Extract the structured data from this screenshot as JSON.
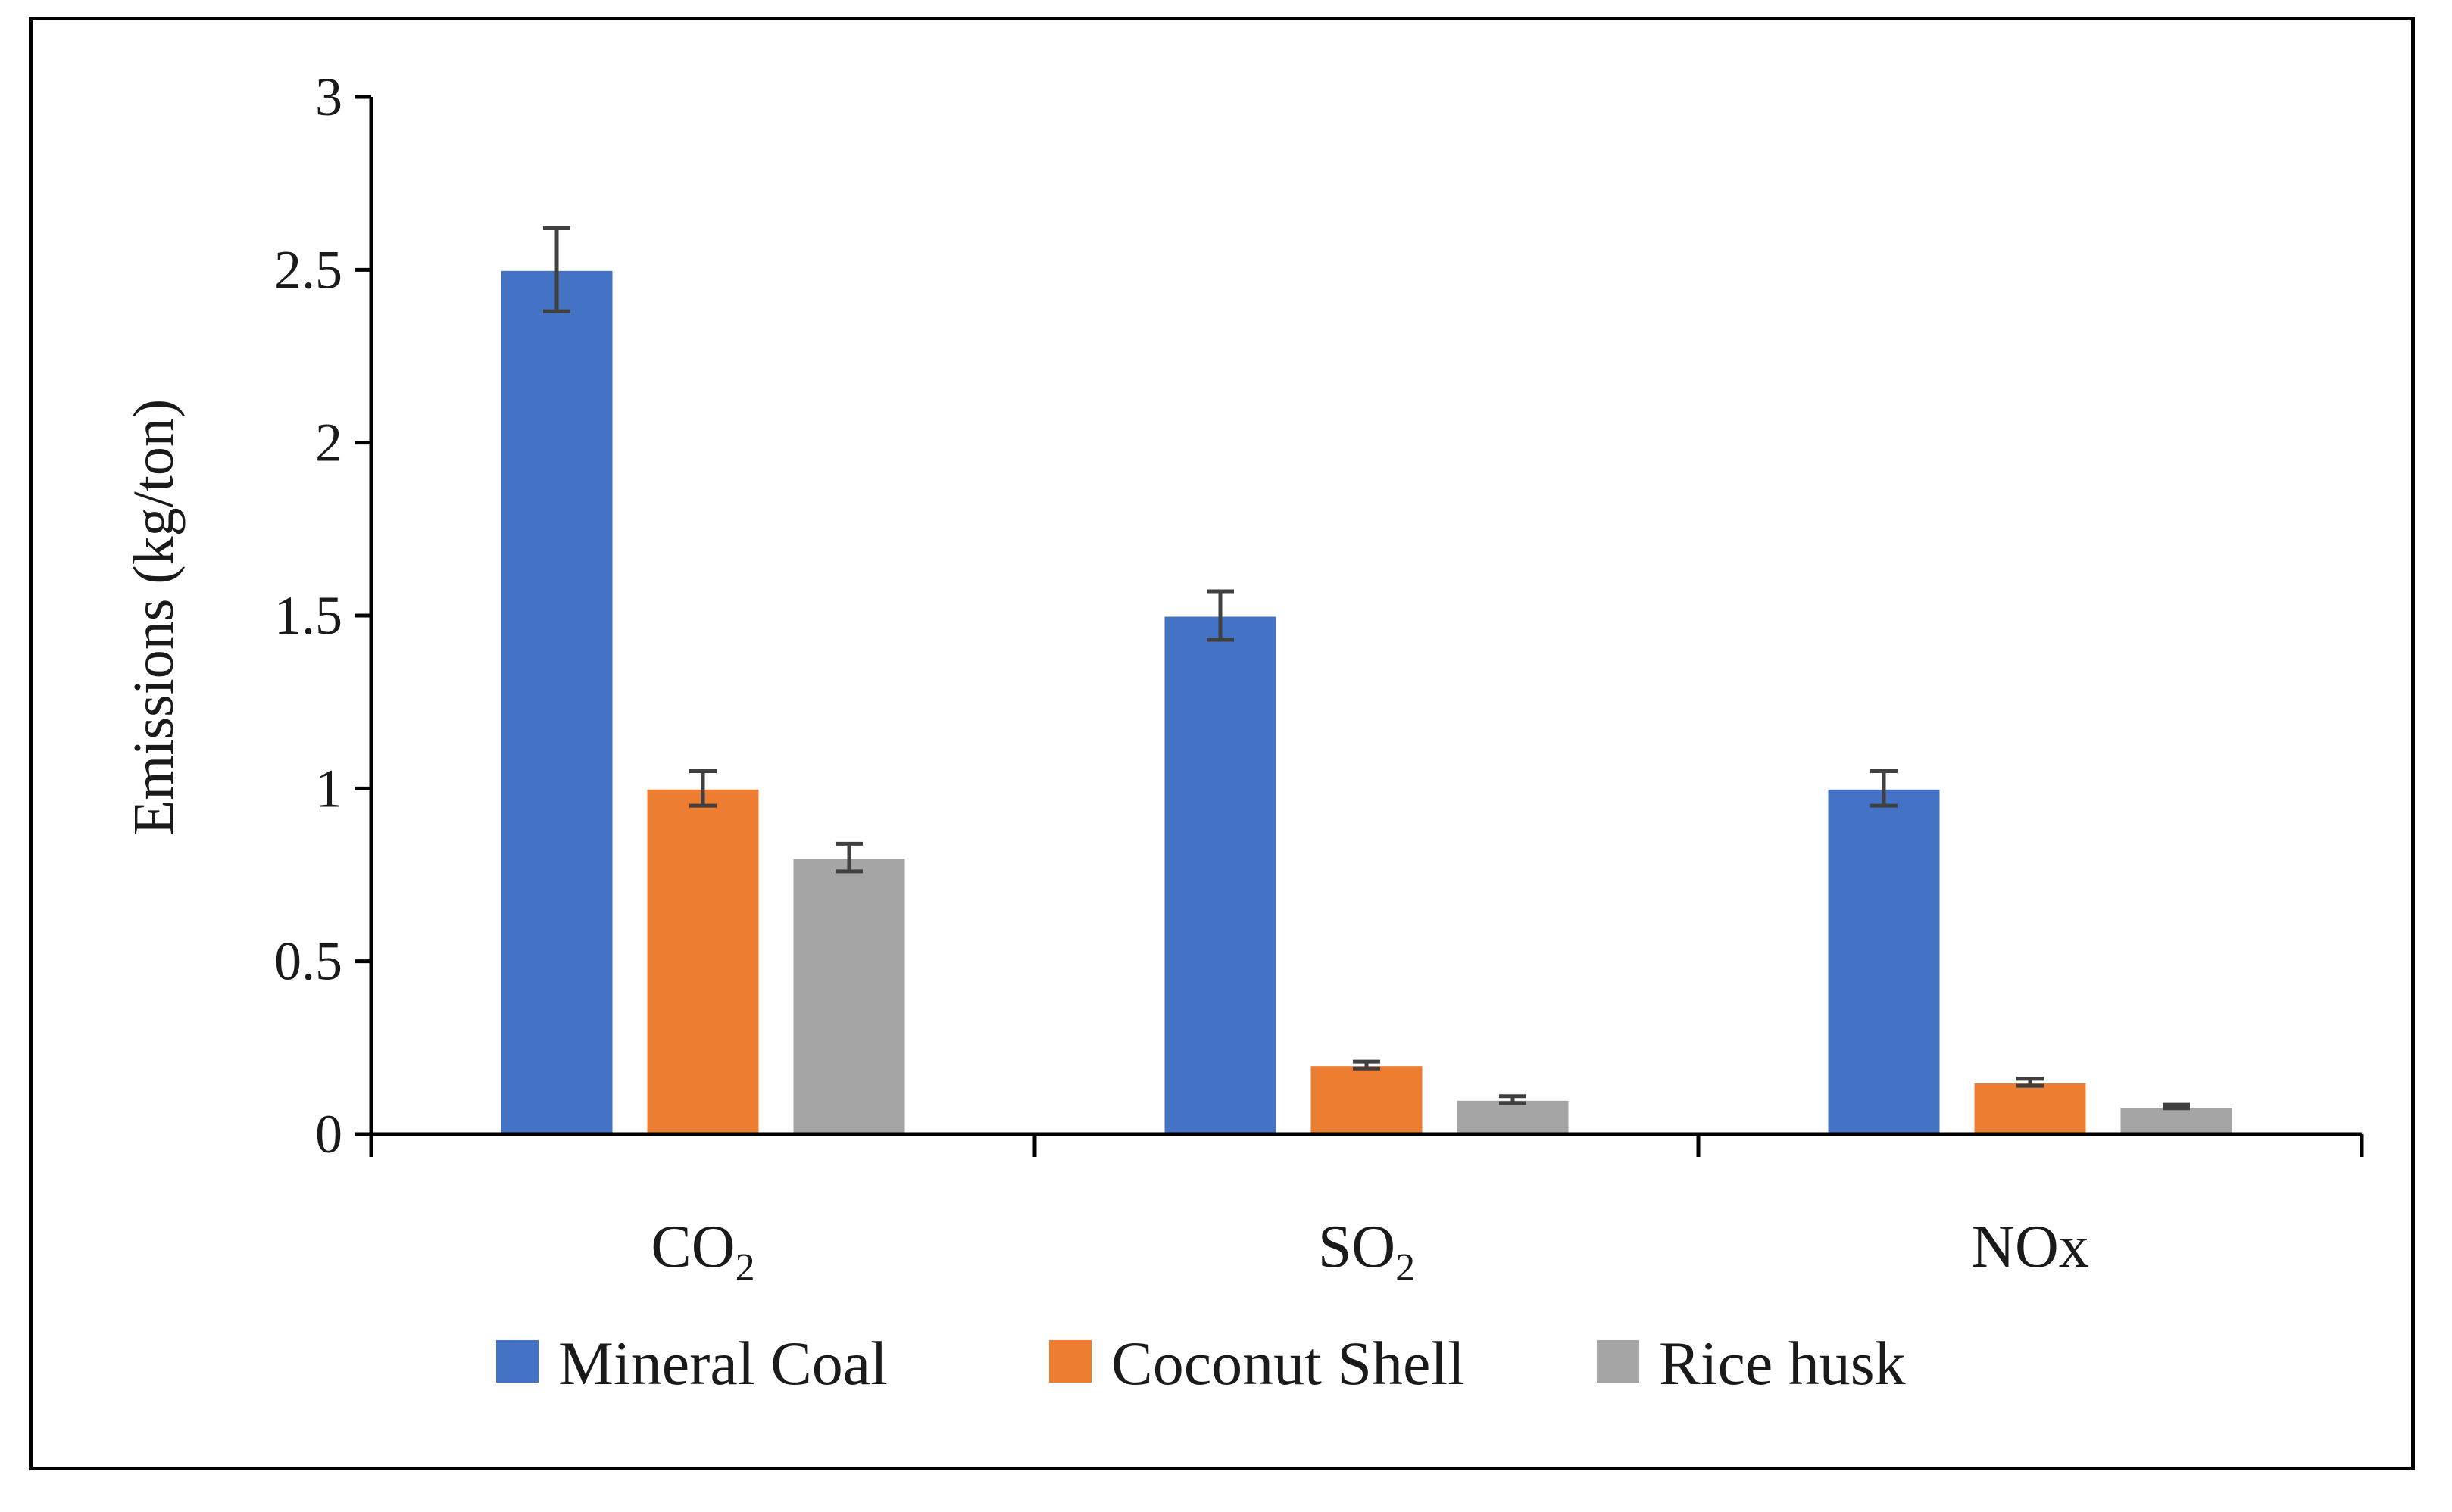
{
  "chart_data": {
    "type": "bar",
    "title": "",
    "xlabel": "",
    "ylabel": "Emissions (kg/ton)",
    "ylim": [
      0,
      3
    ],
    "yticks": [
      "0",
      "0.5",
      "1",
      "1.5",
      "2",
      "2.5",
      "3"
    ],
    "categories": [
      {
        "main": "CO",
        "sub": "2"
      },
      {
        "main": "SO",
        "sub": "2"
      },
      {
        "main": "NOx",
        "sub": ""
      }
    ],
    "series": [
      {
        "name": "Mineral Coal",
        "color": "#4472c4",
        "values": [
          2.5,
          1.5,
          1.0
        ],
        "errors": [
          0.12,
          0.07,
          0.05
        ]
      },
      {
        "name": "Coconut Shell",
        "color": "#ed7d31",
        "values": [
          1.0,
          0.2,
          0.15
        ],
        "errors": [
          0.05,
          0.01,
          0.01
        ]
      },
      {
        "name": "Rice husk",
        "color": "#a5a5a5",
        "values": [
          0.8,
          0.1,
          0.08
        ],
        "errors": [
          0.04,
          0.01,
          0.005
        ]
      }
    ],
    "legend_position": "bottom",
    "grid": false,
    "error_bar_color": "#404040"
  }
}
